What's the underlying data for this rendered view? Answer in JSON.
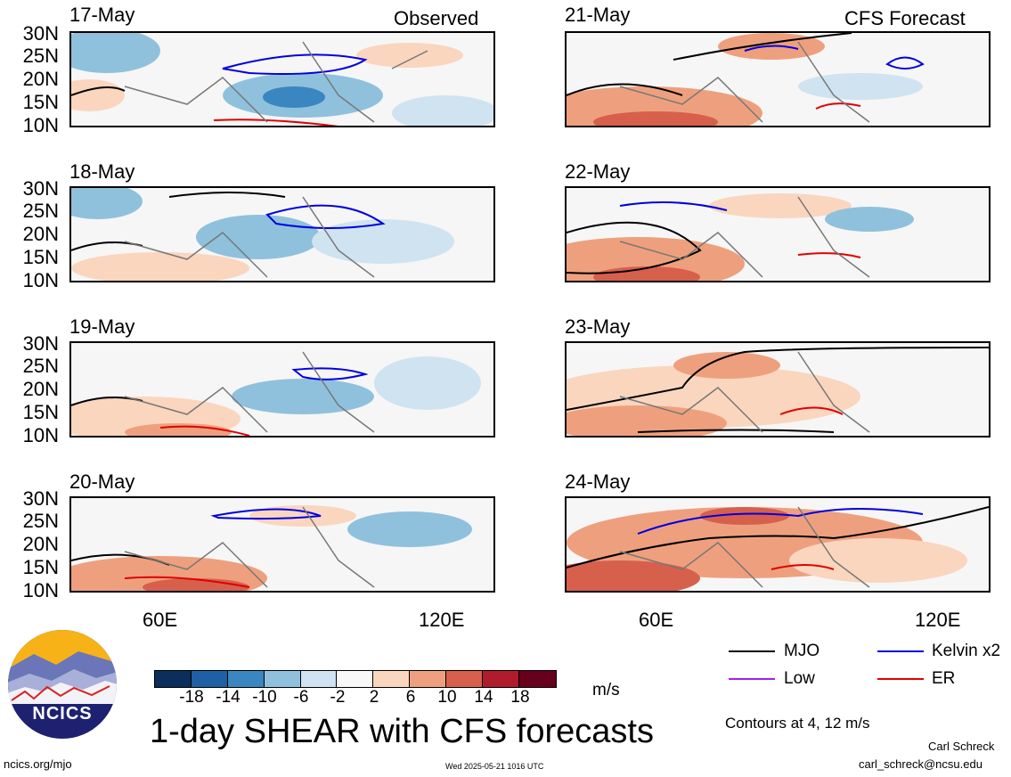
{
  "panels_left_title": "Observed",
  "panels_right_title": "CFS Forecast",
  "dates_left": [
    "17-May",
    "18-May",
    "19-May",
    "20-May"
  ],
  "dates_right": [
    "21-May",
    "22-May",
    "23-May",
    "24-May"
  ],
  "lat_ticks": [
    "30N",
    "25N",
    "20N",
    "15N",
    "10N"
  ],
  "lon_ticks": [
    "60E",
    "120E"
  ],
  "colorbar": {
    "ticks": [
      "-18",
      "-14",
      "-10",
      "-6",
      "-2",
      "2",
      "6",
      "10",
      "14",
      "18"
    ],
    "units": "m/s",
    "colors": [
      "#0b2e5a",
      "#1f5fa5",
      "#3a86c0",
      "#8fc1dd",
      "#cfe3f0",
      "#f8f8f8",
      "#fad6bf",
      "#eea07e",
      "#d7604d",
      "#b01c2c",
      "#66001b"
    ]
  },
  "legend": {
    "mjo": "MJO",
    "kelvin": "Kelvin x2",
    "low": "Low",
    "er": "ER",
    "contours_note": "Contours at 4, 12 m/s",
    "colors": {
      "mjo": "#000000",
      "kelvin": "#0000e0",
      "low": "#a020f0",
      "er": "#e00000"
    }
  },
  "main_title": "1-day SHEAR with CFS forecasts",
  "logo_text": "NCICS",
  "footer": {
    "url": "ncics.org/mjo",
    "timestamp": "Wed 2025-05-21 1016 UTC",
    "author": "Carl Schreck",
    "email": "carl_schreck@ncsu.edu"
  }
}
